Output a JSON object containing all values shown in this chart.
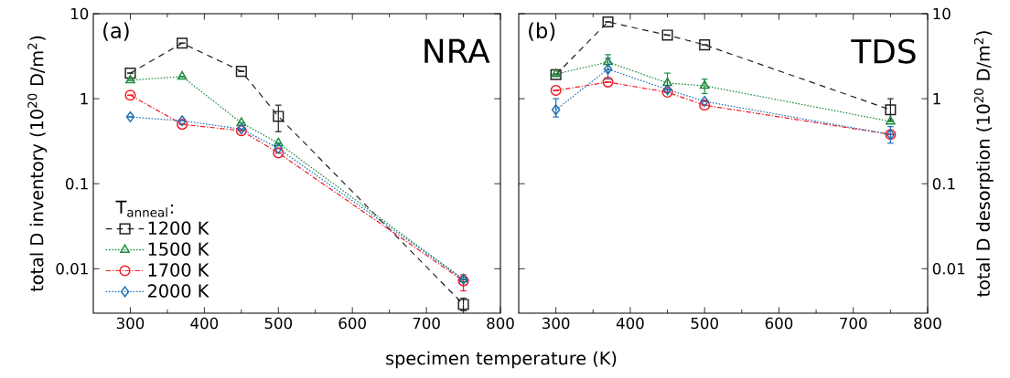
{
  "chart_data": [
    {
      "type": "line",
      "xlabel": "specimen temperature (K)",
      "ylabel": "total D inventory (10$^{20}$ D/m$^{2}$)",
      "legend_title": "T$_{anneal}$:",
      "legend": "bottom left",
      "log": "y",
      "xlim": [
        250,
        800
      ],
      "xticks": [
        300,
        400,
        500,
        600,
        700,
        800
      ],
      "ylim": [
        0.003,
        10
      ],
      "yticks": [
        0.01,
        0.1,
        1,
        10
      ],
      "annotations": [
        "(a)",
        "NRA"
      ],
      "x": [
        300,
        370,
        450,
        500,
        750
      ],
      "series": [
        {
          "name": "1200 K",
          "color": "#231f20",
          "marker": "square",
          "line_style": "dashed",
          "values": [
            2.0,
            4.5,
            2.1,
            0.62,
            0.0038
          ],
          "errors": [
            null,
            null,
            null,
            [
              0.41,
              0.84
            ],
            [
              0.0032,
              0.0045
            ]
          ]
        },
        {
          "name": "1500 K",
          "color": "#1a8a3a",
          "marker": "triangle",
          "line_style": "dotted",
          "values": [
            1.65,
            1.82,
            0.52,
            0.3,
            0.0075
          ],
          "errors": [
            null,
            null,
            null,
            null,
            null
          ]
        },
        {
          "name": "1700 K",
          "color": "#ed1c24",
          "marker": "circle",
          "line_style": "dashdot",
          "values": [
            1.1,
            0.5,
            0.42,
            0.23,
            0.0072
          ],
          "errors": [
            null,
            null,
            null,
            null,
            [
              0.0055,
              0.0085
            ]
          ]
        },
        {
          "name": "2000 K",
          "color": "#1f6fb4",
          "marker": "diamond",
          "line_style": "dotted",
          "values": [
            0.61,
            0.55,
            0.44,
            0.26,
            0.0075
          ],
          "errors": [
            null,
            null,
            null,
            null,
            null
          ]
        }
      ]
    },
    {
      "type": "line",
      "y2label": "total D desorption (10$^{20}$ D/m$^{2}$)",
      "log": "y2",
      "xlim": [
        250,
        800
      ],
      "xticks": [
        300,
        400,
        500,
        600,
        700,
        800
      ],
      "y2lim": [
        0.003,
        10
      ],
      "y2ticks": [
        0.01,
        0.1,
        1,
        10
      ],
      "annotations": [
        "(b)",
        "TDS"
      ],
      "x": [
        300,
        370,
        450,
        500,
        750
      ],
      "series": [
        {
          "color": "#231f20",
          "marker": "square",
          "line_style": "dashed",
          "axis": "y2",
          "values": [
            1.92,
            8.0,
            5.6,
            4.3,
            0.74
          ],
          "errors": [
            null,
            null,
            null,
            null,
            [
              0.55,
              1.0
            ]
          ]
        },
        {
          "color": "#1a8a3a",
          "marker": "triangle",
          "line_style": "dotted",
          "axis": "y2",
          "values": [
            1.95,
            2.7,
            1.53,
            1.42,
            0.54
          ],
          "errors": [
            null,
            [
              2.2,
              3.3
            ],
            [
              1.2,
              2.0
            ],
            [
              1.15,
              1.7
            ],
            null
          ]
        },
        {
          "color": "#ed1c24",
          "marker": "circle",
          "line_style": "dashdot",
          "axis": "y2",
          "values": [
            1.25,
            1.57,
            1.19,
            0.84,
            0.38
          ],
          "errors": [
            null,
            null,
            null,
            null,
            null
          ]
        },
        {
          "color": "#1f6fb4",
          "marker": "diamond",
          "line_style": "dotted",
          "axis": "y2",
          "values": [
            0.74,
            2.23,
            1.28,
            0.93,
            0.38
          ],
          "errors": [
            [
              0.61,
              1.0
            ],
            [
              1.7,
              3.0
            ],
            null,
            null,
            [
              0.3,
              0.47
            ]
          ]
        }
      ]
    }
  ]
}
